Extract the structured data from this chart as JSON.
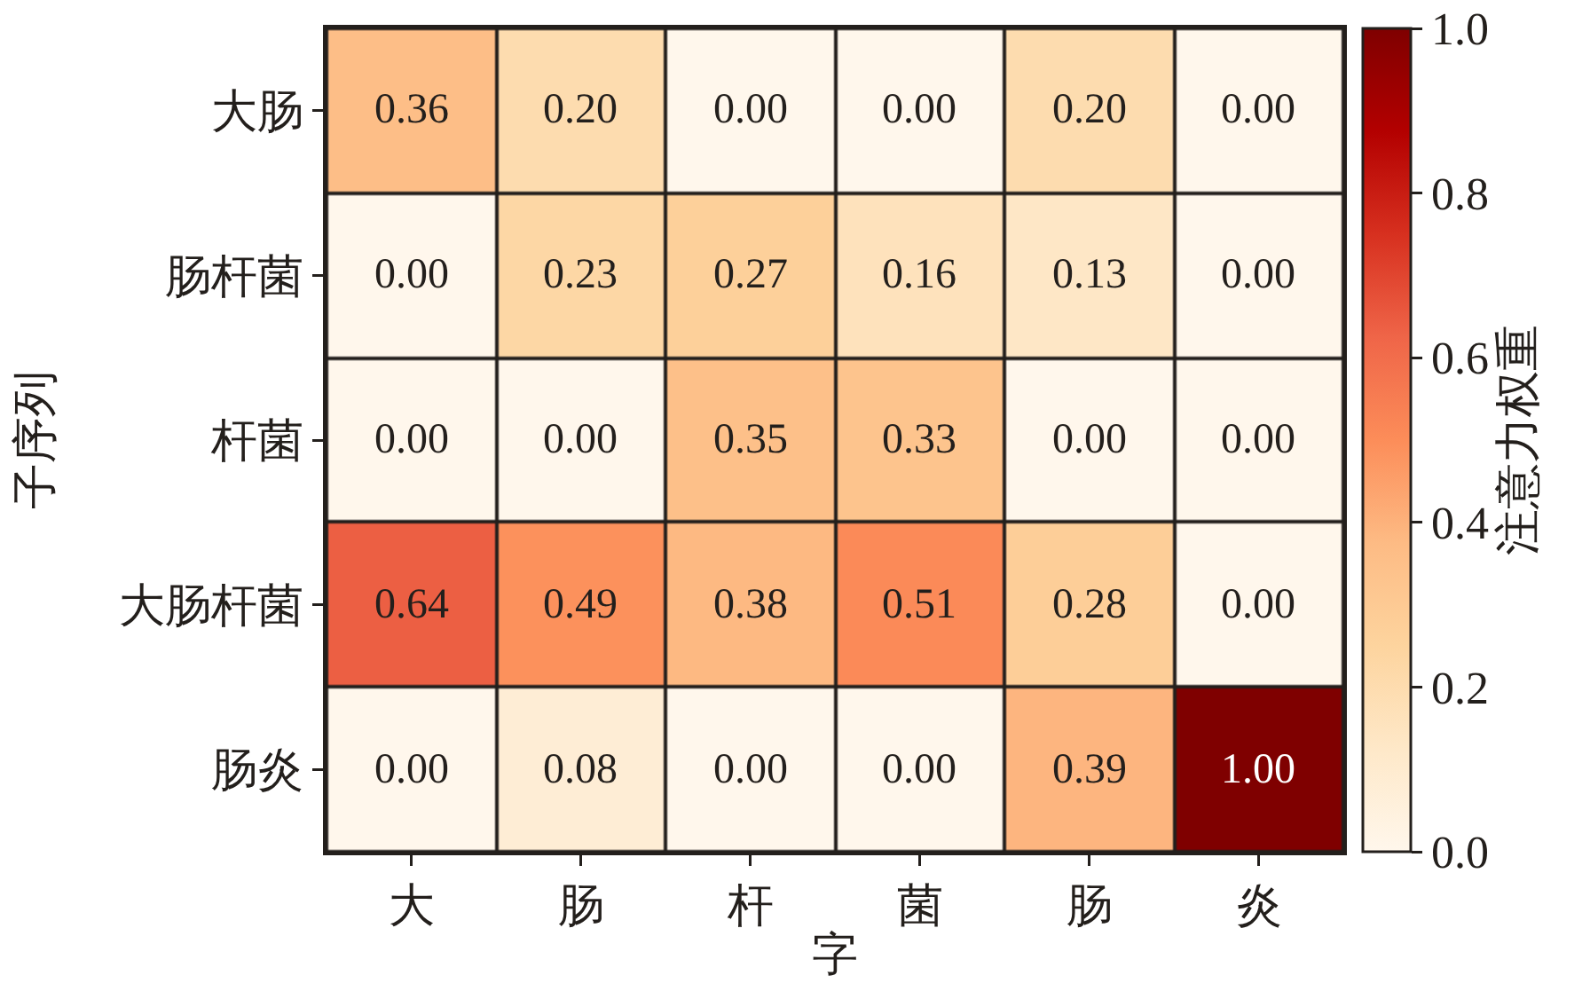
{
  "chart_data": {
    "type": "heatmap",
    "xlabel": "字",
    "ylabel": "子序列",
    "clabel": "注意力权重",
    "categories": [
      "大",
      "肠",
      "杆",
      "菌",
      "肠",
      "炎"
    ],
    "y_categories": [
      "大肠",
      "肠杆菌",
      "杆菌",
      "大肠杆菌",
      "肠炎"
    ],
    "cells": [
      [
        0.36,
        0.2,
        0.0,
        0.0,
        0.2,
        0.0
      ],
      [
        0.0,
        0.23,
        0.27,
        0.16,
        0.13,
        0.0
      ],
      [
        0.0,
        0.0,
        0.35,
        0.33,
        0.0,
        0.0
      ],
      [
        0.64,
        0.49,
        0.38,
        0.51,
        0.28,
        0.0
      ],
      [
        0.0,
        0.08,
        0.0,
        0.0,
        0.39,
        1.0
      ]
    ],
    "cell_labels": [
      [
        "0.36",
        "0.20",
        "0.00",
        "0.00",
        "0.20",
        "0.00"
      ],
      [
        "0.00",
        "0.23",
        "0.27",
        "0.16",
        "0.13",
        "0.00"
      ],
      [
        "0.00",
        "0.00",
        "0.35",
        "0.33",
        "0.00",
        "0.00"
      ],
      [
        "0.64",
        "0.49",
        "0.38",
        "0.51",
        "0.28",
        "0.00"
      ],
      [
        "0.00",
        "0.08",
        "0.00",
        "0.00",
        "0.39",
        "1.00"
      ]
    ],
    "clim": [
      0,
      1
    ],
    "cticks": [
      {
        "value": 0,
        "label": "0.0"
      },
      {
        "value": 0.2,
        "label": "0.2"
      },
      {
        "value": 0.4,
        "label": "0.4"
      },
      {
        "value": 0.6,
        "label": "0.6"
      },
      {
        "value": 0.8,
        "label": "0.8"
      },
      {
        "value": 1,
        "label": "1.0"
      }
    ]
  }
}
